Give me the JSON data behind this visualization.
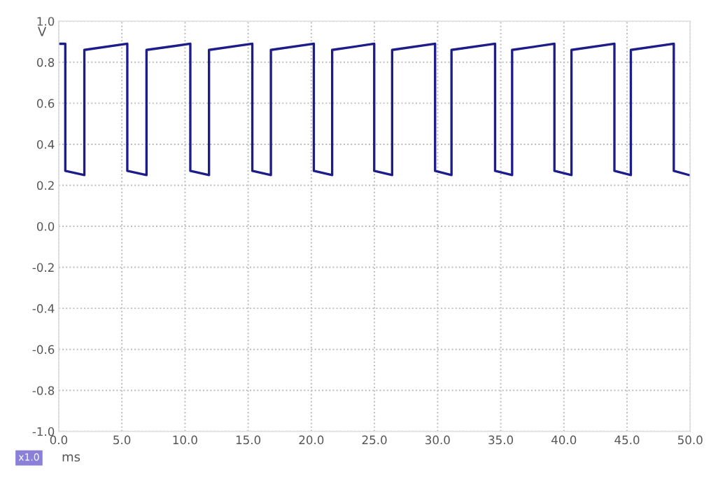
{
  "chart_data": {
    "type": "line",
    "xlabel": "ms",
    "ylabel": "V",
    "annotations": [
      "x1.0"
    ],
    "series": [
      {
        "color": "#1c1c8a",
        "x": [
          0,
          0.52,
          0.52,
          2.03,
          2.03,
          5.43,
          5.43,
          6.95,
          6.95,
          10.42,
          10.42,
          11.9,
          11.9,
          15.33,
          15.33,
          16.8,
          16.8,
          20.2,
          20.2,
          21.65,
          21.65,
          24.98,
          24.98,
          26.4,
          26.4,
          29.8,
          29.8,
          31.1,
          31.1,
          34.55,
          34.55,
          35.9,
          35.9,
          39.25,
          39.25,
          40.6,
          40.6,
          44.0,
          44.0,
          45.3,
          45.3,
          48.7,
          48.7,
          49.9
        ],
        "values": [
          0.89,
          0.89,
          0.27,
          0.25,
          0.86,
          0.89,
          0.27,
          0.25,
          0.86,
          0.89,
          0.27,
          0.25,
          0.86,
          0.89,
          0.27,
          0.25,
          0.86,
          0.89,
          0.27,
          0.25,
          0.86,
          0.89,
          0.27,
          0.25,
          0.86,
          0.89,
          0.27,
          0.25,
          0.86,
          0.89,
          0.27,
          0.25,
          0.86,
          0.89,
          0.27,
          0.25,
          0.86,
          0.89,
          0.27,
          0.25,
          0.86,
          0.89,
          0.27,
          0.25
        ]
      }
    ],
    "xlim": [
      0,
      50
    ],
    "ylim": [
      -1,
      1
    ],
    "xticks": [
      {
        "value": 0,
        "label": "0.0"
      },
      {
        "value": 5,
        "label": "5.0"
      },
      {
        "value": 10,
        "label": "10.0"
      },
      {
        "value": 15,
        "label": "15.0"
      },
      {
        "value": 20,
        "label": "20.0"
      },
      {
        "value": 25,
        "label": "25.0"
      },
      {
        "value": 30,
        "label": "30.0"
      },
      {
        "value": 35,
        "label": "35.0"
      },
      {
        "value": 40,
        "label": "40.0"
      },
      {
        "value": 45,
        "label": "45.0"
      },
      {
        "value": 50,
        "label": "50.0"
      }
    ],
    "yticks": [
      {
        "value": -1,
        "label": "-1.0"
      },
      {
        "value": -0.8,
        "label": "-0.8"
      },
      {
        "value": -0.6,
        "label": "-0.6"
      },
      {
        "value": -0.4,
        "label": "-0.4"
      },
      {
        "value": -0.2,
        "label": "-0.2"
      },
      {
        "value": 0,
        "label": "0.0"
      },
      {
        "value": 0.2,
        "label": "0.2"
      },
      {
        "value": 0.4,
        "label": "0.4"
      },
      {
        "value": 0.6,
        "label": "0.6"
      },
      {
        "value": 0.8,
        "label": "0.8"
      },
      {
        "value": 1,
        "label": "1.0"
      }
    ],
    "grid": true,
    "marker": "none",
    "line_style": "solid",
    "legend": false
  }
}
